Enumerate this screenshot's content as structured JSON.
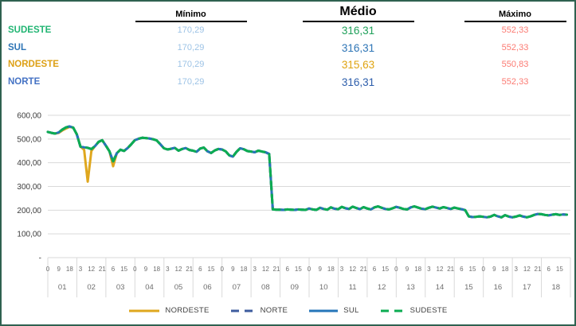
{
  "table": {
    "headers": {
      "min": "Mínimo",
      "avg": "Médio",
      "max": "Máximo"
    },
    "min_color": "#9DC3E6",
    "max_color": "#FB7A72",
    "rows": [
      {
        "region": "SUDESTE",
        "min": "170,29",
        "avg": "316,31",
        "max": "552,33",
        "label_color": "#21B573",
        "avg_color": "#1FA05A"
      },
      {
        "region": "SUL",
        "min": "170,29",
        "avg": "316,31",
        "max": "552,33",
        "label_color": "#2E75B6",
        "avg_color": "#2E75B6"
      },
      {
        "region": "NORDESTE",
        "min": "170,29",
        "avg": "315,63",
        "max": "550,83",
        "label_color": "#DDA016",
        "avg_color": "#DFA30F"
      },
      {
        "region": "NORTE",
        "min": "170,29",
        "avg": "316,31",
        "max": "552,33",
        "label_color": "#4472C4",
        "avg_color": "#2C5DAB"
      }
    ]
  },
  "chart_data": {
    "type": "line",
    "title": "",
    "xlabel": "",
    "ylabel": "",
    "ylim": [
      0,
      600
    ],
    "y_tick_labels": [
      "600,00",
      "500,00",
      "400,00",
      "300,00",
      "200,00",
      "100,00",
      "-"
    ],
    "grid": true,
    "grid_color": "#D9D9D9",
    "tick_color": "#6E6E6E",
    "ylabel_color": "#3B3B3B",
    "legend_position": "bottom",
    "days": [
      "01",
      "02",
      "03",
      "04",
      "05",
      "06",
      "07",
      "08",
      "09",
      "10",
      "11",
      "12",
      "13",
      "14",
      "15",
      "16",
      "17",
      "18"
    ],
    "hours_pattern": [
      [
        0,
        9,
        18
      ],
      [
        3,
        12,
        21
      ],
      [
        6,
        15
      ]
    ],
    "hour_step": 3,
    "points_per_day": 8,
    "values": {
      "base": [
        530,
        526,
        523,
        528,
        540,
        549,
        553,
        548,
        520,
        468,
        465,
        463,
        458,
        470,
        488,
        495,
        472,
        448,
        406,
        440,
        455,
        450,
        462,
        478,
        495,
        501,
        505,
        504,
        502,
        499,
        494,
        478,
        461,
        456,
        459,
        463,
        451,
        458,
        462,
        454,
        451,
        446,
        460,
        464,
        448,
        441,
        452,
        458,
        456,
        448,
        431,
        426,
        446,
        461,
        457,
        449,
        447,
        444,
        451,
        447,
        444,
        437,
        203,
        202,
        202,
        201,
        203,
        202,
        201,
        203,
        202,
        201,
        207,
        203,
        201,
        210,
        205,
        202,
        212,
        206,
        204,
        214,
        208,
        205,
        215,
        209,
        204,
        213,
        207,
        203,
        212,
        216,
        210,
        205,
        203,
        208,
        214,
        210,
        205,
        203,
        212,
        216,
        211,
        206,
        204,
        210,
        215,
        211,
        207,
        213,
        209,
        205,
        211,
        207,
        204,
        200,
        174,
        171,
        172,
        174,
        172,
        170,
        173,
        180,
        174,
        170,
        179,
        173,
        170,
        173,
        178,
        173,
        170,
        174,
        180,
        184,
        183,
        180,
        178,
        181,
        183,
        180,
        182,
        181
      ],
      "nordeste": [
        530,
        526,
        523,
        526,
        536,
        544,
        551,
        548,
        520,
        468,
        455,
        320,
        450,
        470,
        488,
        495,
        472,
        448,
        385,
        440,
        455,
        450,
        462,
        478,
        495,
        501,
        505,
        504,
        502,
        499,
        494,
        478,
        461,
        456,
        459,
        463,
        451,
        458,
        462,
        454,
        451,
        446,
        460,
        464,
        448,
        441,
        452,
        458,
        456,
        448,
        431,
        426,
        446,
        461,
        457,
        449,
        447,
        444,
        451,
        447,
        444,
        437,
        203,
        202,
        202,
        201,
        203,
        202,
        201,
        203,
        202,
        201,
        207,
        203,
        201,
        210,
        205,
        202,
        212,
        206,
        204,
        214,
        208,
        205,
        215,
        209,
        204,
        213,
        207,
        203,
        212,
        216,
        210,
        205,
        203,
        208,
        214,
        210,
        205,
        203,
        212,
        216,
        211,
        206,
        204,
        210,
        215,
        211,
        207,
        213,
        209,
        205,
        211,
        207,
        204,
        200,
        174,
        171,
        172,
        174,
        172,
        170,
        173,
        180,
        174,
        170,
        179,
        173,
        170,
        173,
        178,
        173,
        170,
        174,
        180,
        184,
        183,
        180,
        178,
        181,
        183,
        180,
        182,
        181
      ]
    },
    "series": [
      {
        "name": "NORDESTE",
        "color": "#DFA71E",
        "dash": "none",
        "values_key": "nordeste"
      },
      {
        "name": "NORTE",
        "color": "#3D5C9E",
        "dash": "8 6",
        "values_key": "base"
      },
      {
        "name": "SUL",
        "color": "#2576B9",
        "dash": "none",
        "values_key": "base"
      },
      {
        "name": "SUDESTE",
        "color": "#0CAC52",
        "dash": "10 7",
        "values_key": "base"
      }
    ]
  }
}
